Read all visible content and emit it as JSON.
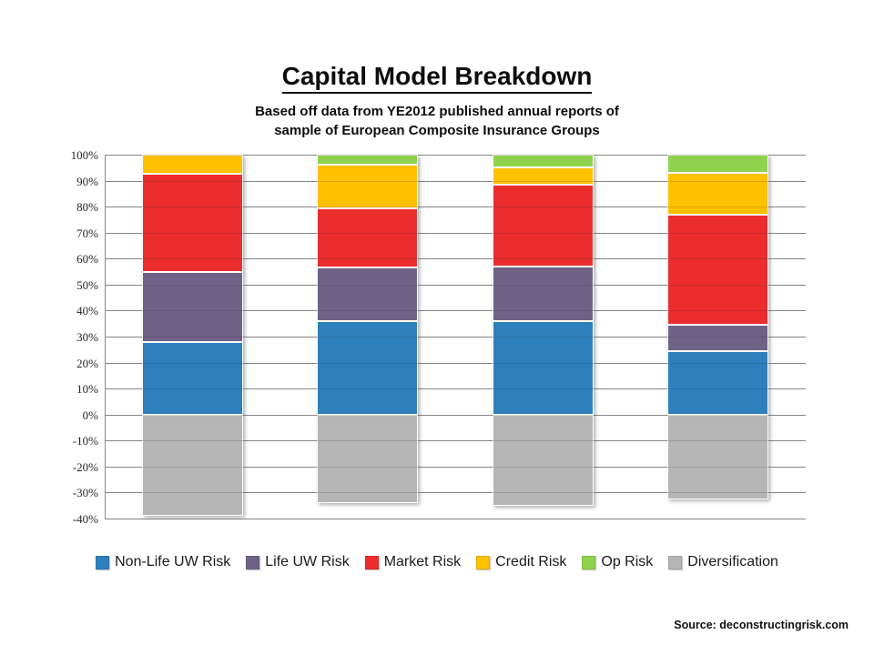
{
  "page": {
    "title": "Capital Model Breakdown",
    "subtitle_line1": "Based off data from YE2012 published annual reports of",
    "subtitle_line2": "sample of European Composite Insurance Groups",
    "source": "Source: deconstructingrisk.com"
  },
  "chart_data": {
    "type": "bar",
    "stacked": true,
    "title": "Capital Model Breakdown",
    "subtitle": "Based off data from YE2012 published annual reports of sample of European Composite Insurance Groups",
    "categories": [
      "",
      "",
      "",
      ""
    ],
    "series": [
      {
        "name": "Non-Life UW Risk",
        "color": "#2E80BD",
        "values": [
          28,
          36,
          36,
          24.5
        ]
      },
      {
        "name": "Life UW Risk",
        "color": "#6F6287",
        "values": [
          27,
          20.5,
          21,
          10
        ]
      },
      {
        "name": "Market Risk",
        "color": "#EB2D2E",
        "values": [
          37.5,
          23,
          31.5,
          42.5
        ]
      },
      {
        "name": "Credit Risk",
        "color": "#FFC000",
        "values": [
          7.5,
          16.5,
          6.5,
          16
        ]
      },
      {
        "name": "Op Risk",
        "color": "#8FD24E",
        "values": [
          0,
          4,
          5,
          7
        ]
      },
      {
        "name": "Diversification",
        "color": "#B5B5B5",
        "values": [
          -39,
          -34,
          -35,
          -32.5
        ]
      }
    ],
    "ylabel": "",
    "xlabel": "",
    "ylim": [
      -40,
      100
    ],
    "ytick_step": 10,
    "ytick_format": "percent",
    "grid": true,
    "gridline_color": "#8c8c8c",
    "legend_position": "bottom"
  }
}
